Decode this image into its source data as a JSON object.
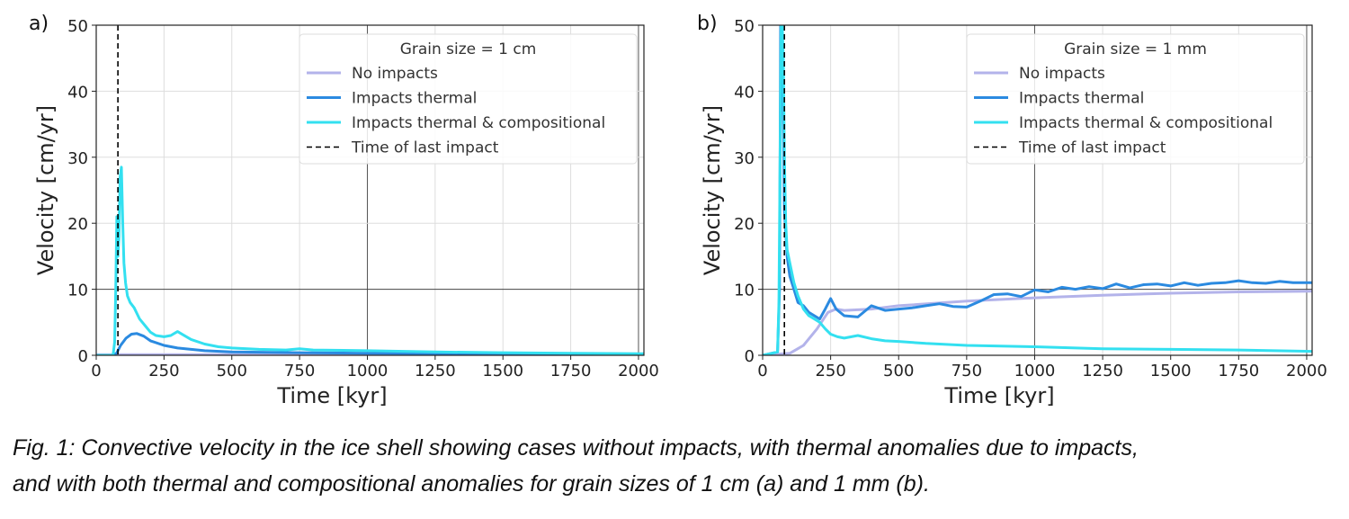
{
  "caption": {
    "line1": "Fig. 1: Convective velocity in the ice shell showing cases without impacts, with thermal anomalies due to impacts,",
    "line2": "and with both thermal and compositional anomalies for grain sizes of 1 cm (a) and 1 mm (b)."
  },
  "colors": {
    "no_impacts": "#b3b3ea",
    "impacts_thermal": "#2b8ae0",
    "impacts_thermal_comp": "#33e0f0",
    "last_impact": "#000000",
    "grid": "#dddddd"
  },
  "chart_data": [
    {
      "panel_label": "a)",
      "type": "line",
      "xlabel": "Time [kyr]",
      "ylabel": "Velocity [cm/yr]",
      "xlim": [
        0,
        2020
      ],
      "ylim": [
        0,
        50
      ],
      "xticks": [
        0,
        250,
        500,
        750,
        1000,
        1250,
        1500,
        1750,
        2000
      ],
      "yticks": [
        0,
        10,
        20,
        30,
        40,
        50
      ],
      "grid": true,
      "legend": {
        "title": "Grain size = 1 cm",
        "placement": "top-right",
        "entries": [
          "No impacts",
          "Impacts thermal",
          "Impacts thermal & compositional",
          "Time of last impact"
        ]
      },
      "vline": 80,
      "series": [
        {
          "name": "No impacts",
          "x": [
            0,
            500,
            1000,
            1500,
            2020
          ],
          "y": [
            0.1,
            0.1,
            0.1,
            0.1,
            0.1
          ]
        },
        {
          "name": "Impacts thermal",
          "x": [
            0,
            60,
            75,
            90,
            110,
            130,
            150,
            175,
            200,
            250,
            300,
            400,
            500,
            750,
            1000,
            1500,
            2020
          ],
          "y": [
            0,
            0,
            0.3,
            1.5,
            2.6,
            3.2,
            3.3,
            2.9,
            2.2,
            1.5,
            1.1,
            0.7,
            0.5,
            0.4,
            0.3,
            0.2,
            0.15
          ]
        },
        {
          "name": "Impacts thermal & compositional",
          "x": [
            0,
            62,
            68,
            72,
            76,
            80,
            84,
            88,
            93,
            98,
            102,
            108,
            115,
            125,
            140,
            160,
            180,
            200,
            220,
            250,
            275,
            300,
            320,
            350,
            400,
            450,
            500,
            600,
            700,
            750,
            800,
            1000,
            1250,
            1500,
            1750,
            2020
          ],
          "y": [
            0,
            0,
            2,
            10,
            21,
            15,
            18,
            27,
            28.5,
            20,
            14,
            11,
            9,
            8,
            7.2,
            5.5,
            4.5,
            3.5,
            3,
            2.8,
            3,
            3.6,
            3.1,
            2.4,
            1.7,
            1.3,
            1.1,
            0.9,
            0.8,
            1.0,
            0.8,
            0.7,
            0.5,
            0.4,
            0.3,
            0.25
          ]
        }
      ]
    },
    {
      "panel_label": "b)",
      "type": "line",
      "xlabel": "Time [kyr]",
      "ylabel": "Velocity [cm/yr]",
      "xlim": [
        0,
        2020
      ],
      "ylim": [
        0,
        50
      ],
      "xticks": [
        0,
        250,
        500,
        750,
        1000,
        1250,
        1500,
        1750,
        2000
      ],
      "yticks": [
        0,
        10,
        20,
        30,
        40,
        50
      ],
      "grid": true,
      "legend": {
        "title": "Grain size = 1 mm",
        "placement": "top-right",
        "entries": [
          "No impacts",
          "Impacts thermal",
          "Impacts thermal & compositional",
          "Time of last impact"
        ]
      },
      "vline": 80,
      "series": [
        {
          "name": "No impacts",
          "x": [
            0,
            100,
            150,
            200,
            240,
            270,
            300,
            400,
            500,
            750,
            1000,
            1250,
            1500,
            1750,
            2020
          ],
          "y": [
            0,
            0.3,
            1.5,
            4,
            6.5,
            7,
            6.8,
            7,
            7.5,
            8.2,
            8.7,
            9.1,
            9.4,
            9.6,
            9.7
          ]
        },
        {
          "name": "Impacts thermal",
          "x": [
            0,
            55,
            62,
            66,
            70,
            75,
            80,
            90,
            100,
            115,
            130,
            150,
            170,
            190,
            210,
            230,
            250,
            270,
            300,
            350,
            400,
            450,
            500,
            550,
            600,
            650,
            700,
            750,
            800,
            850,
            900,
            950,
            1000,
            1050,
            1100,
            1150,
            1200,
            1250,
            1300,
            1350,
            1400,
            1450,
            1500,
            1550,
            1600,
            1650,
            1700,
            1750,
            1800,
            1850,
            1900,
            1950,
            2020
          ],
          "y": [
            0,
            0.5,
            10,
            50,
            50,
            40,
            22,
            15,
            12,
            10,
            8,
            7.5,
            6.5,
            6,
            5.5,
            7,
            8.6,
            7,
            6,
            5.8,
            7.5,
            6.8,
            7,
            7.2,
            7.5,
            7.8,
            7.4,
            7.3,
            8.2,
            9.2,
            9.3,
            8.9,
            9.9,
            9.6,
            10.3,
            10,
            10.4,
            10.1,
            10.8,
            10.2,
            10.7,
            10.8,
            10.5,
            11,
            10.6,
            10.9,
            11,
            11.3,
            11,
            10.9,
            11.2,
            11,
            11
          ]
        },
        {
          "name": "Impacts thermal & compositional",
          "x": [
            0,
            55,
            60,
            64,
            68,
            72,
            76,
            80,
            85,
            90,
            100,
            115,
            130,
            150,
            170,
            190,
            210,
            230,
            250,
            275,
            300,
            350,
            400,
            450,
            500,
            600,
            750,
            1000,
            1250,
            1500,
            1750,
            2020
          ],
          "y": [
            0,
            0.5,
            8,
            30,
            50,
            50,
            45,
            30,
            20,
            16,
            14,
            11,
            9,
            7,
            6,
            5.5,
            5,
            4,
            3.2,
            2.8,
            2.6,
            3,
            2.5,
            2.2,
            2.1,
            1.8,
            1.5,
            1.3,
            1.0,
            0.9,
            0.8,
            0.6
          ]
        }
      ]
    }
  ]
}
